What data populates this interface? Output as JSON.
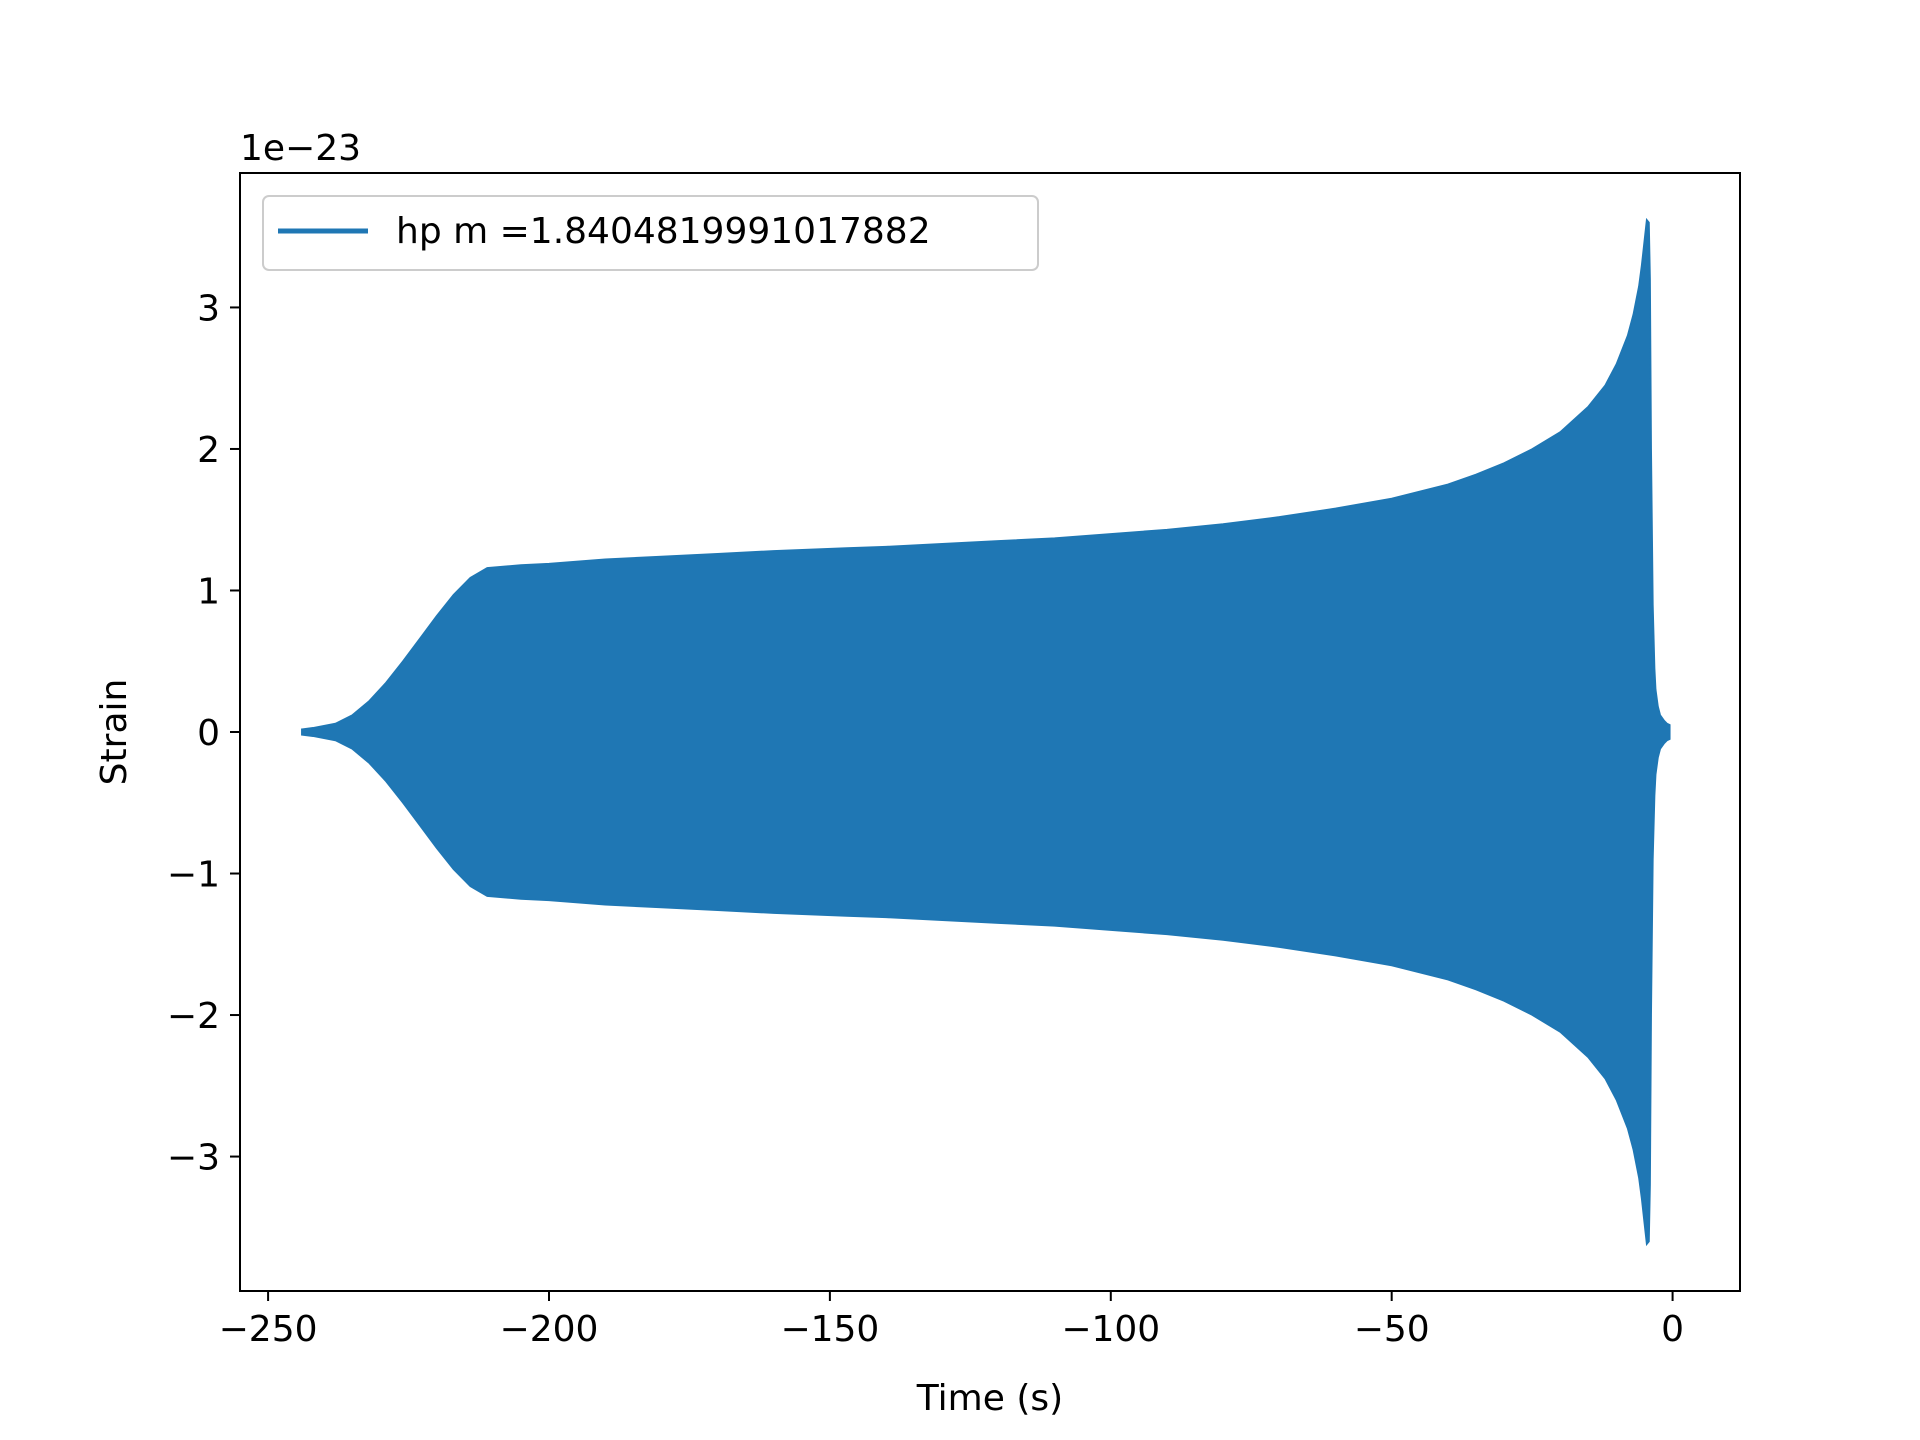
{
  "chart_data": {
    "type": "area",
    "title": "",
    "xlabel": "Time (s)",
    "ylabel": "Strain",
    "y_offset_label": "1e−23",
    "xlim": [
      -255,
      12
    ],
    "ylim": [
      -3.95,
      3.95
    ],
    "x_ticks": [
      -250,
      -200,
      -150,
      -100,
      -50,
      0
    ],
    "x_tick_labels": [
      "−250",
      "−200",
      "−150",
      "−100",
      "−50",
      "0"
    ],
    "y_ticks": [
      -3,
      -2,
      -1,
      0,
      1,
      2,
      3
    ],
    "y_tick_labels": [
      "−3",
      "−2",
      "−1",
      "0",
      "1",
      "2",
      "3"
    ],
    "grid": false,
    "legend_position": "upper left",
    "series": [
      {
        "name": "hp m =1.8404819991017882",
        "color": "#1f77b4",
        "envelope_description": "symmetric oscillation envelope (upper bound = amplitude, lower bound = -amplitude), scaled by 1e-23",
        "x": [
          -244,
          -242,
          -238,
          -235,
          -232,
          -229,
          -226,
          -223,
          -220,
          -217,
          -214,
          -211,
          -205,
          -200,
          -190,
          -180,
          -170,
          -160,
          -147,
          -140,
          -130,
          -120,
          -110,
          -100,
          -90,
          -80,
          -70,
          -60,
          -50,
          -40,
          -35,
          -30,
          -25,
          -20,
          -15,
          -12,
          -10,
          -8,
          -7,
          -6,
          -5.5,
          -5,
          -4.6,
          -4.2,
          -4.0,
          -3.8,
          -3.5,
          -3.2,
          -3.0,
          -2.6,
          -2.2,
          -1.5,
          -1.0,
          -0.5
        ],
        "amplitude": [
          0.02,
          0.03,
          0.06,
          0.12,
          0.22,
          0.35,
          0.5,
          0.66,
          0.82,
          0.97,
          1.09,
          1.16,
          1.18,
          1.19,
          1.22,
          1.24,
          1.26,
          1.28,
          1.3,
          1.31,
          1.33,
          1.35,
          1.37,
          1.4,
          1.43,
          1.47,
          1.52,
          1.58,
          1.65,
          1.75,
          1.82,
          1.9,
          2.0,
          2.12,
          2.3,
          2.45,
          2.6,
          2.8,
          2.95,
          3.15,
          3.3,
          3.48,
          3.62,
          3.6,
          3.2,
          2.0,
          0.9,
          0.45,
          0.3,
          0.18,
          0.12,
          0.08,
          0.06,
          0.05
        ]
      }
    ]
  }
}
